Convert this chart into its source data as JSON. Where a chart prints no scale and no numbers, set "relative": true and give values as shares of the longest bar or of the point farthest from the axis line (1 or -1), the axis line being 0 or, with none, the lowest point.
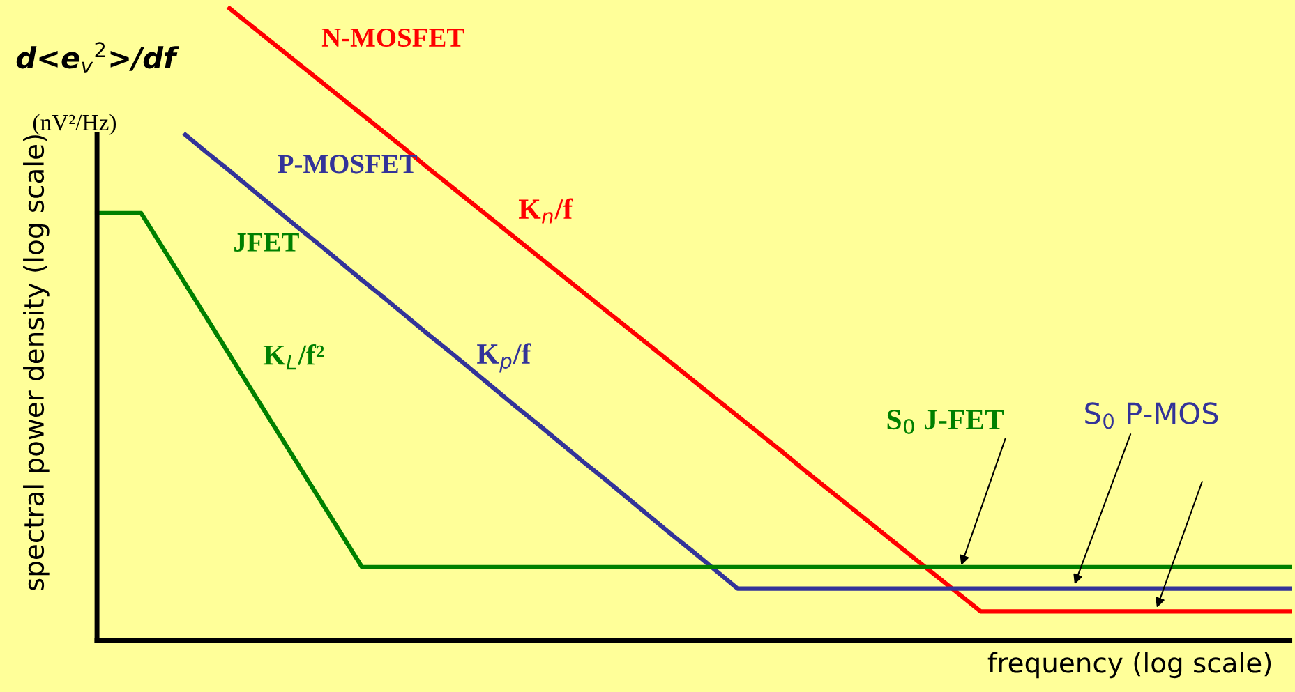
{
  "chart_data": {
    "type": "line",
    "relative": true,
    "title": "d<e$_{v}$$^{2}$>/df",
    "subtitle": "(nV²/Hz)",
    "ylabel": "spectral power density (log scale)",
    "xlabel": "frequency (log scale)",
    "categories": [
      null,
      null,
      null,
      null,
      null,
      null,
      null,
      null,
      null,
      null,
      null,
      null,
      null,
      null,
      null,
      null,
      null,
      null,
      null,
      null,
      null,
      null,
      null,
      null,
      null,
      null,
      null,
      null,
      null,
      null,
      null,
      null,
      null,
      null,
      null,
      null,
      null,
      null,
      null,
      null,
      null,
      null,
      null,
      null,
      null,
      null,
      null,
      null,
      null,
      null,
      null,
      null,
      null,
      null,
      null
    ],
    "series": [
      {
        "name": "N-MOSFET",
        "color": "#ff0000",
        "values": [
          null,
          null,
          null,
          null,
          null,
          null,
          1.0,
          0.972,
          0.944,
          0.916,
          0.888,
          0.86,
          0.832,
          0.804,
          0.776,
          0.747,
          0.719,
          0.691,
          0.663,
          0.635,
          0.607,
          0.579,
          0.551,
          0.523,
          0.495,
          0.467,
          0.439,
          0.411,
          0.383,
          0.355,
          0.327,
          0.299,
          0.27,
          0.242,
          0.214,
          0.186,
          0.158,
          0.13,
          0.102,
          0.074,
          0.046,
          0.046,
          0.046,
          0.046,
          0.046,
          0.046,
          0.046,
          0.046,
          0.046,
          0.046,
          0.046,
          0.046,
          0.046,
          0.046,
          0.046
        ]
      },
      {
        "name": "P-MOSFET",
        "color": "#333399",
        "values": [
          null,
          null,
          null,
          null,
          0.8,
          0.771,
          0.743,
          0.714,
          0.685,
          0.656,
          0.628,
          0.599,
          0.57,
          0.542,
          0.513,
          0.484,
          0.456,
          0.427,
          0.398,
          0.369,
          0.341,
          0.312,
          0.283,
          0.255,
          0.226,
          0.197,
          0.168,
          0.14,
          0.111,
          0.082,
          0.082,
          0.082,
          0.082,
          0.082,
          0.082,
          0.082,
          0.082,
          0.082,
          0.082,
          0.082,
          0.082,
          0.082,
          0.082,
          0.082,
          0.082,
          0.082,
          0.082,
          0.082,
          0.082,
          0.082,
          0.082,
          0.082,
          0.082,
          0.082,
          0.082
        ]
      },
      {
        "name": "JFET",
        "color": "#008000",
        "values": [
          0.676,
          0.676,
          0.676,
          0.62,
          0.564,
          0.508,
          0.452,
          0.396,
          0.34,
          0.284,
          0.228,
          0.172,
          0.116,
          0.116,
          0.116,
          0.116,
          0.116,
          0.116,
          0.116,
          0.116,
          0.116,
          0.116,
          0.116,
          0.116,
          0.116,
          0.116,
          0.116,
          0.116,
          0.116,
          0.116,
          0.116,
          0.116,
          0.116,
          0.116,
          0.116,
          0.116,
          0.116,
          0.116,
          0.116,
          0.116,
          0.116,
          0.116,
          0.116,
          0.116,
          0.116,
          0.116,
          0.116,
          0.116,
          0.116,
          0.116,
          0.116,
          0.116,
          0.116,
          0.116,
          0.116
        ]
      }
    ],
    "annotations": [
      "K$_{n}$/f",
      "K$_{L}$/f²",
      "K$_{p}$/f",
      "S$_{0}$ J-FET",
      "S$_{0}$ P-MOS"
    ],
    "marker": "none",
    "line_style": "solid"
  }
}
